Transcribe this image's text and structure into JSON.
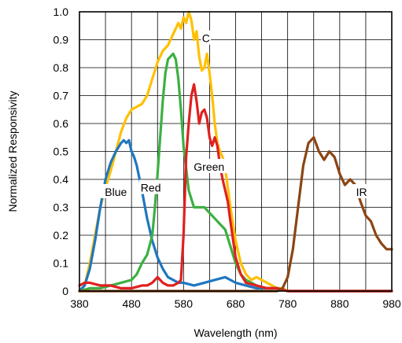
{
  "chart_data": {
    "type": "line",
    "title": "",
    "xlabel": "Wavelength (nm)",
    "ylabel": "Normalized Responsivity",
    "xlim": [
      380,
      980
    ],
    "ylim": [
      0,
      1.0
    ],
    "x_ticks": [
      "380",
      "480",
      "580",
      "680",
      "780",
      "880",
      "980"
    ],
    "y_ticks": [
      "0",
      "0.1",
      "0.2",
      "0.3",
      "0.4",
      "0.5",
      "0.6",
      "0.7",
      "0.8",
      "0.9",
      "1.0"
    ],
    "grid": true,
    "series": [
      {
        "name": "C",
        "color": "#FFC000",
        "x": [
          380,
          390,
          400,
          410,
          420,
          430,
          440,
          450,
          460,
          470,
          480,
          490,
          500,
          510,
          520,
          530,
          540,
          550,
          560,
          570,
          575,
          580,
          585,
          590,
          595,
          600,
          605,
          610,
          615,
          620,
          625,
          630,
          635,
          640,
          645,
          650,
          655,
          660,
          670,
          680,
          690,
          700,
          710,
          720,
          730,
          740,
          750,
          760,
          770,
          780,
          800,
          850,
          900,
          980
        ],
        "y": [
          0.0,
          0.02,
          0.1,
          0.2,
          0.3,
          0.37,
          0.43,
          0.5,
          0.57,
          0.62,
          0.65,
          0.66,
          0.67,
          0.7,
          0.76,
          0.82,
          0.86,
          0.88,
          0.92,
          0.96,
          0.94,
          0.98,
          0.96,
          1.0,
          0.97,
          0.9,
          0.93,
          0.84,
          0.79,
          0.8,
          0.85,
          0.78,
          0.7,
          0.6,
          0.53,
          0.5,
          0.48,
          0.44,
          0.3,
          0.18,
          0.1,
          0.06,
          0.04,
          0.05,
          0.04,
          0.03,
          0.02,
          0.01,
          0.01,
          0.0,
          0.0,
          0.0,
          0.0,
          0.0
        ]
      },
      {
        "name": "Blue",
        "color": "#1F77C0",
        "x": [
          380,
          390,
          400,
          410,
          420,
          430,
          440,
          450,
          460,
          465,
          470,
          475,
          480,
          485,
          490,
          500,
          510,
          520,
          530,
          540,
          550,
          560,
          570,
          580,
          600,
          620,
          640,
          660,
          680,
          700,
          720,
          740,
          760,
          780,
          980
        ],
        "y": [
          0.0,
          0.02,
          0.08,
          0.18,
          0.3,
          0.4,
          0.46,
          0.5,
          0.53,
          0.54,
          0.53,
          0.54,
          0.5,
          0.48,
          0.45,
          0.36,
          0.26,
          0.18,
          0.12,
          0.08,
          0.05,
          0.04,
          0.03,
          0.03,
          0.02,
          0.03,
          0.04,
          0.05,
          0.03,
          0.02,
          0.01,
          0.01,
          0.01,
          0.0,
          0.0
        ]
      },
      {
        "name": "Green",
        "color": "#3CB043",
        "x": [
          380,
          400,
          420,
          440,
          460,
          480,
          490,
          500,
          510,
          520,
          525,
          530,
          535,
          540,
          545,
          550,
          555,
          560,
          565,
          570,
          575,
          580,
          590,
          600,
          610,
          620,
          630,
          640,
          650,
          660,
          670,
          680,
          690,
          700,
          720,
          740,
          760,
          780,
          980
        ],
        "y": [
          0.0,
          0.01,
          0.01,
          0.02,
          0.03,
          0.04,
          0.06,
          0.1,
          0.13,
          0.2,
          0.3,
          0.42,
          0.55,
          0.68,
          0.78,
          0.83,
          0.84,
          0.85,
          0.83,
          0.76,
          0.65,
          0.52,
          0.36,
          0.3,
          0.3,
          0.3,
          0.28,
          0.26,
          0.24,
          0.22,
          0.16,
          0.1,
          0.06,
          0.04,
          0.02,
          0.01,
          0.01,
          0.0,
          0.0
        ]
      },
      {
        "name": "Red",
        "color": "#E02020",
        "x": [
          380,
          390,
          400,
          420,
          440,
          460,
          480,
          500,
          510,
          520,
          530,
          540,
          550,
          560,
          570,
          575,
          580,
          585,
          590,
          595,
          600,
          605,
          610,
          615,
          620,
          625,
          630,
          635,
          640,
          645,
          650,
          655,
          660,
          665,
          670,
          680,
          690,
          700,
          720,
          740,
          760,
          780,
          980
        ],
        "y": [
          0.02,
          0.03,
          0.03,
          0.02,
          0.02,
          0.01,
          0.01,
          0.02,
          0.02,
          0.03,
          0.05,
          0.03,
          0.02,
          0.02,
          0.03,
          0.04,
          0.2,
          0.48,
          0.6,
          0.7,
          0.74,
          0.68,
          0.6,
          0.64,
          0.65,
          0.62,
          0.55,
          0.52,
          0.55,
          0.52,
          0.45,
          0.4,
          0.36,
          0.32,
          0.25,
          0.12,
          0.06,
          0.03,
          0.02,
          0.01,
          0.01,
          0.0,
          0.0
        ]
      },
      {
        "name": "IR",
        "color": "#8B4513",
        "x": [
          380,
          760,
          770,
          780,
          790,
          800,
          810,
          820,
          830,
          840,
          850,
          860,
          870,
          880,
          890,
          900,
          910,
          920,
          930,
          940,
          950,
          960,
          970,
          980
        ],
        "y": [
          0.0,
          0.0,
          0.01,
          0.05,
          0.15,
          0.3,
          0.45,
          0.53,
          0.55,
          0.5,
          0.47,
          0.5,
          0.48,
          0.42,
          0.38,
          0.4,
          0.38,
          0.32,
          0.27,
          0.25,
          0.2,
          0.17,
          0.15,
          0.15
        ]
      }
    ],
    "labels": [
      {
        "text": "C",
        "series": "C",
        "x": 623,
        "y": 0.905
      },
      {
        "text": "Green",
        "series": "Green",
        "x": 629,
        "y": 0.445
      },
      {
        "text": "Blue",
        "series": "Blue",
        "x": 450,
        "y": 0.355
      },
      {
        "text": "Red",
        "series": "Red",
        "x": 517,
        "y": 0.37
      },
      {
        "text": "IR",
        "series": "IR",
        "x": 922,
        "y": 0.355
      }
    ]
  }
}
